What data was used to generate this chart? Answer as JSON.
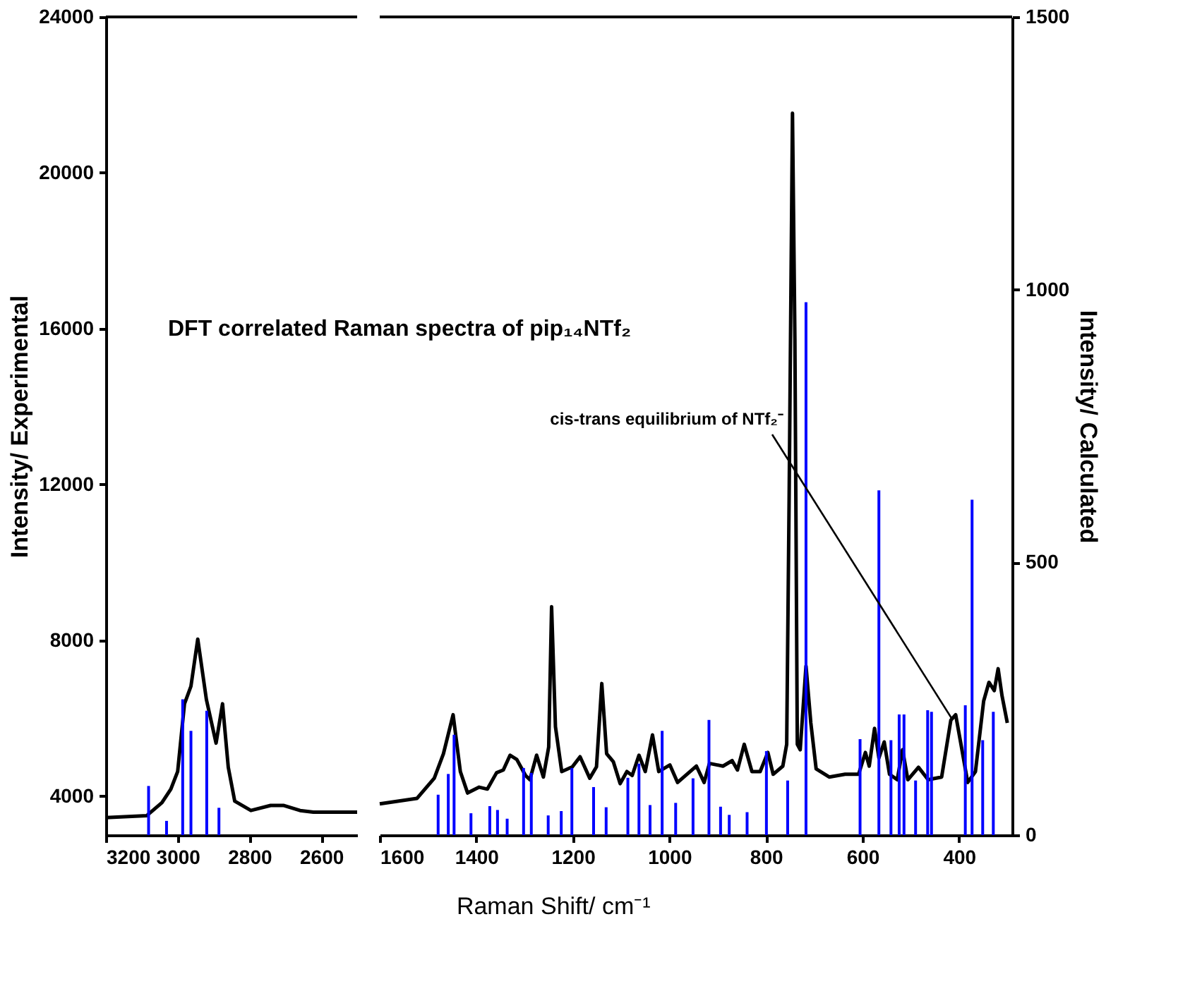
{
  "chart_data": [
    {
      "type": "line",
      "ylabel": "Intensity/ Experimental",
      "xlim": [
        3200,
        2500
      ],
      "xticks": [
        3200,
        3000,
        2800,
        2600
      ],
      "ylim": [
        3000,
        24000
      ],
      "yticks": [
        4000,
        8000,
        12000,
        16000,
        20000,
        24000
      ],
      "y2lim": [
        0,
        1500
      ],
      "tick_labels": [
        "x",
        "y"
      ],
      "grid": false,
      "annotations": [
        "DFT correlated Raman spectra of pip₁₄NTf₂"
      ],
      "series": [
        {
          "color": "#000000",
          "x": [
            3200,
            3086,
            3044,
            3019,
            3000,
            2981,
            2963,
            2944,
            2920,
            2893,
            2875,
            2859,
            2841,
            2796,
            2741,
            2704,
            2659,
            2622,
            2500
          ],
          "values": [
            3450,
            3500,
            3830,
            4180,
            4630,
            6370,
            6820,
            8030,
            6480,
            5360,
            6370,
            4740,
            3870,
            3630,
            3760,
            3760,
            3630,
            3590,
            3590
          ]
        },
        {
          "type": "bar",
          "axis": "y2",
          "color": "#0000ff",
          "x": [
            3081,
            3031,
            2986,
            2963,
            2919,
            2885
          ],
          "values": [
            90,
            26,
            249,
            191,
            228,
            50
          ]
        }
      ]
    },
    {
      "type": "line",
      "xlabel": "Raman Shift/ cm⁻¹",
      "y2label": "Intensity/ Calculated",
      "xlim": [
        1600,
        290
      ],
      "xticks": [
        1600,
        1400,
        1200,
        1000,
        800,
        600,
        400
      ],
      "ylim": [
        3000,
        24000
      ],
      "y2lim": [
        0,
        1500
      ],
      "y2ticks": [
        0,
        500,
        1000,
        1500
      ],
      "tick_labels": [
        "x",
        "y2"
      ],
      "grid": false,
      "annotations": [
        {
          "text": "cis-trans equilibrium of NTf₂⁻",
          "x": 413,
          "y": 5950
        }
      ],
      "series": [
        {
          "color": "#000000",
          "x": [
            1600,
            1523,
            1487,
            1468,
            1448,
            1433,
            1418,
            1394,
            1377,
            1358,
            1344,
            1330,
            1316,
            1298,
            1289,
            1275,
            1261,
            1250,
            1244,
            1236,
            1223,
            1201,
            1185,
            1165,
            1151,
            1140,
            1130,
            1116,
            1102,
            1088,
            1077,
            1063,
            1050,
            1035,
            1022,
            999,
            983,
            944,
            928,
            917,
            889,
            870,
            859,
            845,
            829,
            812,
            796,
            785,
            765,
            757,
            752,
            745,
            740,
            735,
            729,
            717,
            707,
            696,
            669,
            636,
            608,
            594,
            586,
            575,
            566,
            555,
            544,
            528,
            517,
            506,
            484,
            464,
            436,
            417,
            407,
            396,
            382,
            366,
            349,
            338,
            327,
            319,
            311,
            300
          ],
          "values": [
            3800,
            3940,
            4460,
            5090,
            6090,
            4630,
            4080,
            4230,
            4180,
            4600,
            4670,
            5050,
            4940,
            4530,
            4420,
            5050,
            4490,
            5260,
            8860,
            5780,
            4630,
            4750,
            5010,
            4460,
            4750,
            6890,
            5090,
            4880,
            4320,
            4630,
            4530,
            5050,
            4630,
            5570,
            4630,
            4800,
            4350,
            4770,
            4350,
            4840,
            4770,
            4910,
            4670,
            5330,
            4630,
            4630,
            5120,
            4560,
            4770,
            5330,
            11570,
            21530,
            15740,
            5330,
            5190,
            7340,
            5880,
            4700,
            4490,
            4560,
            4560,
            5120,
            4770,
            5740,
            4980,
            5390,
            4560,
            4420,
            5190,
            4420,
            4740,
            4420,
            4490,
            5950,
            6090,
            5330,
            4350,
            4630,
            6440,
            6920,
            6710,
            7270,
            6580,
            5880
          ]
        },
        {
          "type": "bar",
          "axis": "y2",
          "color": "#0000ff",
          "x": [
            1479,
            1458,
            1446,
            1411,
            1372,
            1356,
            1336,
            1302,
            1286,
            1251,
            1224,
            1202,
            1157,
            1131,
            1086,
            1063,
            1040,
            1015,
            987,
            951,
            918,
            894,
            876,
            839,
            799,
            755,
            717,
            605,
            566,
            541,
            524,
            514,
            490,
            465,
            457,
            387,
            373,
            351,
            329
          ],
          "values": [
            74,
            112,
            184,
            40,
            53,
            46,
            30,
            123,
            114,
            36,
            44,
            123,
            88,
            51,
            105,
            131,
            55,
            191,
            59,
            104,
            211,
            52,
            37,
            42,
            154,
            100,
            977,
            176,
            632,
            174,
            221,
            221,
            100,
            229,
            226,
            238,
            615,
            174,
            226
          ]
        }
      ]
    }
  ]
}
